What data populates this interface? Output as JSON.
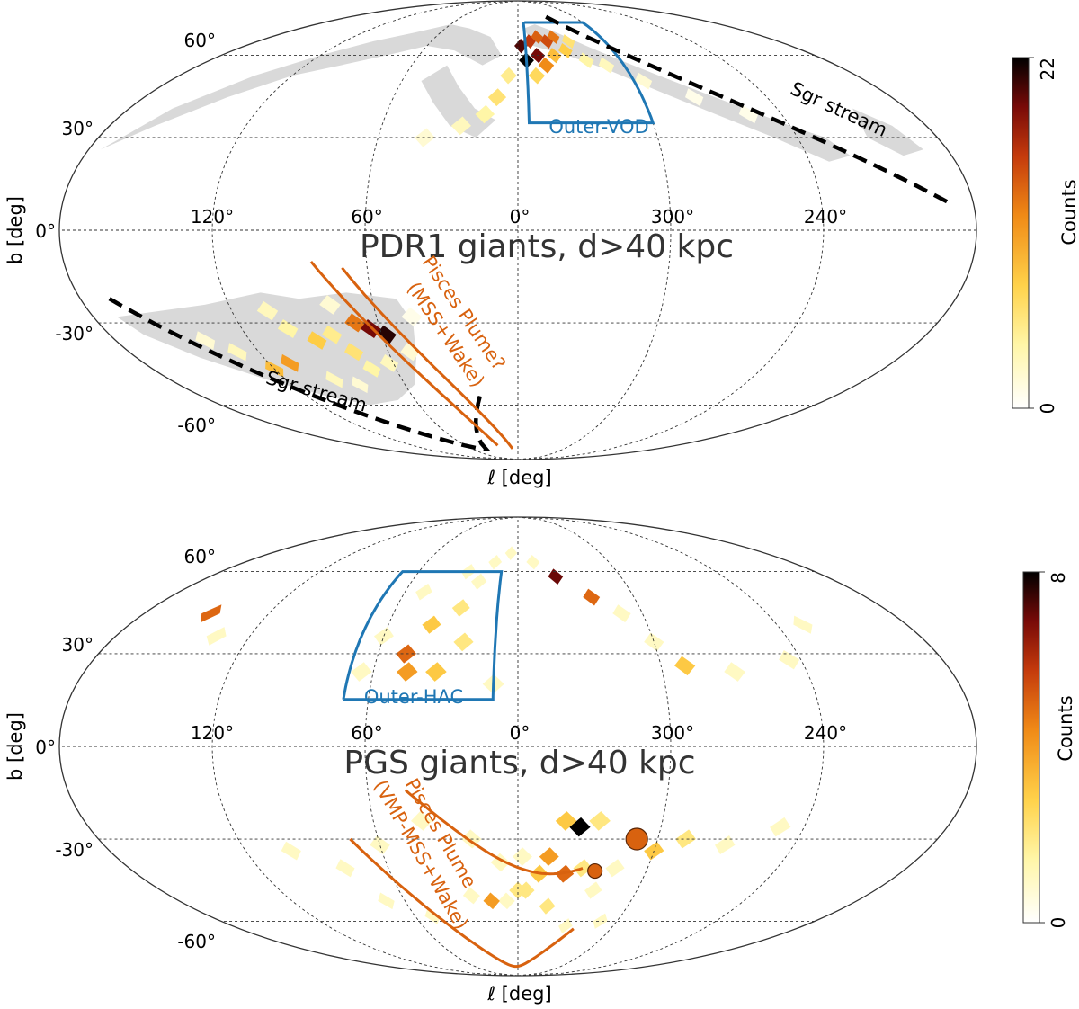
{
  "chart_data": [
    {
      "type": "heatmap",
      "projection": "mollweide",
      "title": "PDR1 giants, d>40 kpc",
      "xlabel": "ℓ [deg]",
      "ylabel": "b [deg]",
      "lon_tick_labels": [
        "120°",
        "60°",
        "0°",
        "300°",
        "240°"
      ],
      "lat_tick_labels": [
        "60°",
        "30°",
        "0°",
        "-30°",
        "-60°"
      ],
      "colorbar": {
        "label": "Counts",
        "min": 0,
        "max": 22,
        "min_label": "0",
        "max_label": "22"
      },
      "annotations": {
        "region_label": "Outer-VOD",
        "stream_label": "Sgr stream",
        "plume_line1": "Pisces Plume?",
        "plume_line2": "(MSS+Wake)"
      },
      "colors": {
        "region": "#1f77b4",
        "plume": "#d8620f",
        "stream": "#000000"
      },
      "cells": [
        {
          "l": 358,
          "b": 64,
          "v": 20
        },
        {
          "l": 352,
          "b": 66,
          "v": 16
        },
        {
          "l": 346,
          "b": 68,
          "v": 14
        },
        {
          "l": 340,
          "b": 66,
          "v": 15
        },
        {
          "l": 334,
          "b": 68,
          "v": 13
        },
        {
          "l": 355,
          "b": 58,
          "v": 22
        },
        {
          "l": 348,
          "b": 60,
          "v": 19
        },
        {
          "l": 344,
          "b": 56,
          "v": 12
        },
        {
          "l": 338,
          "b": 60,
          "v": 9
        },
        {
          "l": 330,
          "b": 62,
          "v": 8
        },
        {
          "l": 325,
          "b": 66,
          "v": 6
        },
        {
          "l": 320,
          "b": 58,
          "v": 4
        },
        {
          "l": 350,
          "b": 52,
          "v": 7
        },
        {
          "l": 5,
          "b": 52,
          "v": 5
        },
        {
          "l": 10,
          "b": 44,
          "v": 6
        },
        {
          "l": 15,
          "b": 38,
          "v": 4
        },
        {
          "l": 25,
          "b": 34,
          "v": 3
        },
        {
          "l": 40,
          "b": 30,
          "v": 2
        },
        {
          "l": 310,
          "b": 56,
          "v": 3
        },
        {
          "l": 295,
          "b": 50,
          "v": 2
        },
        {
          "l": 275,
          "b": 44,
          "v": 1
        },
        {
          "l": 255,
          "b": 38,
          "v": 1
        },
        {
          "l": 82,
          "b": -34,
          "v": 5
        },
        {
          "l": 70,
          "b": -30,
          "v": 13
        },
        {
          "l": 64,
          "b": -32,
          "v": 19
        },
        {
          "l": 58,
          "b": -34,
          "v": 21
        },
        {
          "l": 76,
          "b": -40,
          "v": 6
        },
        {
          "l": 90,
          "b": -36,
          "v": 8
        },
        {
          "l": 100,
          "b": -32,
          "v": 4
        },
        {
          "l": 72,
          "b": -46,
          "v": 4
        },
        {
          "l": 62,
          "b": -44,
          "v": 3
        },
        {
          "l": 110,
          "b": -44,
          "v": 11
        },
        {
          "l": 120,
          "b": -46,
          "v": 9
        },
        {
          "l": 95,
          "b": -50,
          "v": 3
        },
        {
          "l": 84,
          "b": -52,
          "v": 2
        },
        {
          "l": 130,
          "b": -40,
          "v": 3
        },
        {
          "l": 140,
          "b": -36,
          "v": 2
        },
        {
          "l": 105,
          "b": -26,
          "v": 3
        },
        {
          "l": 50,
          "b": -40,
          "v": 2
        },
        {
          "l": 78,
          "b": -24,
          "v": 2
        },
        {
          "l": 45,
          "b": -28,
          "v": 1
        }
      ]
    },
    {
      "type": "heatmap",
      "projection": "mollweide",
      "title": "PGS giants, d>40 kpc",
      "xlabel": "ℓ [deg]",
      "ylabel": "b [deg]",
      "lon_tick_labels": [
        "120°",
        "60°",
        "0°",
        "300°",
        "240°"
      ],
      "lat_tick_labels": [
        "60°",
        "30°",
        "0°",
        "-30°",
        "-60°"
      ],
      "colorbar": {
        "label": "Counts",
        "min": 0,
        "max": 8,
        "min_label": "0",
        "max_label": "8"
      },
      "annotations": {
        "region_label": "Outer-HAC",
        "plume_line1": "Pisces Plume",
        "plume_line2": "(VMP-MSS+Wake)"
      },
      "colors": {
        "region": "#1f77b4",
        "plume": "#d8620f"
      },
      "cells": [
        {
          "l": 338,
          "b": 58,
          "v": 7
        },
        {
          "l": 322,
          "b": 50,
          "v": 5
        },
        {
          "l": 350,
          "b": 64,
          "v": 1
        },
        {
          "l": 310,
          "b": 44,
          "v": 1
        },
        {
          "l": 300,
          "b": 34,
          "v": 1
        },
        {
          "l": 290,
          "b": 26,
          "v": 3
        },
        {
          "l": 270,
          "b": 24,
          "v": 1
        },
        {
          "l": 245,
          "b": 28,
          "v": 1
        },
        {
          "l": 228,
          "b": 40,
          "v": 1
        },
        {
          "l": 148,
          "b": 44,
          "v": 5
        },
        {
          "l": 135,
          "b": 36,
          "v": 1
        },
        {
          "l": 48,
          "b": 30,
          "v": 5
        },
        {
          "l": 46,
          "b": 24,
          "v": 4
        },
        {
          "l": 34,
          "b": 24,
          "v": 3
        },
        {
          "l": 40,
          "b": 40,
          "v": 3
        },
        {
          "l": 28,
          "b": 46,
          "v": 2
        },
        {
          "l": 24,
          "b": 34,
          "v": 2
        },
        {
          "l": 60,
          "b": 36,
          "v": 1
        },
        {
          "l": 50,
          "b": 52,
          "v": 1
        },
        {
          "l": 22,
          "b": 56,
          "v": 1
        },
        {
          "l": 15,
          "b": 64,
          "v": 1
        },
        {
          "l": 30,
          "b": 60,
          "v": 1
        },
        {
          "l": 65,
          "b": 24,
          "v": 1
        },
        {
          "l": 5,
          "b": 68,
          "v": 1
        },
        {
          "l": 10,
          "b": 20,
          "v": 1
        },
        {
          "l": 334,
          "b": -26,
          "v": 8
        },
        {
          "l": 340,
          "b": -24,
          "v": 3
        },
        {
          "l": 326,
          "b": -24,
          "v": 2
        },
        {
          "l": 346,
          "b": -36,
          "v": 4
        },
        {
          "l": 350,
          "b": -42,
          "v": 3
        },
        {
          "l": 338,
          "b": -42,
          "v": 5
        },
        {
          "l": 330,
          "b": -40,
          "v": 2
        },
        {
          "l": 356,
          "b": -48,
          "v": 2
        },
        {
          "l": 344,
          "b": -54,
          "v": 2
        },
        {
          "l": 0,
          "b": -48,
          "v": 2
        },
        {
          "l": 6,
          "b": -52,
          "v": 1
        },
        {
          "l": 14,
          "b": -52,
          "v": 4
        },
        {
          "l": 24,
          "b": -50,
          "v": 1
        },
        {
          "l": 358,
          "b": -36,
          "v": 1
        },
        {
          "l": 8,
          "b": -38,
          "v": 1
        },
        {
          "l": 322,
          "b": -48,
          "v": 1
        },
        {
          "l": 330,
          "b": -62,
          "v": 1
        },
        {
          "l": 300,
          "b": -34,
          "v": 3
        },
        {
          "l": 288,
          "b": -30,
          "v": 2
        },
        {
          "l": 270,
          "b": -32,
          "v": 1
        },
        {
          "l": 250,
          "b": -26,
          "v": 1
        },
        {
          "l": 315,
          "b": -40,
          "v": 1
        },
        {
          "l": 60,
          "b": -32,
          "v": 1
        },
        {
          "l": 80,
          "b": -40,
          "v": 1
        },
        {
          "l": 100,
          "b": -34,
          "v": 1
        },
        {
          "l": 50,
          "b": -58,
          "v": 1
        },
        {
          "l": 70,
          "b": -52,
          "v": 1
        },
        {
          "l": 40,
          "b": -24,
          "v": 1
        },
        {
          "l": 20,
          "b": -30,
          "v": 1
        },
        {
          "l": 310,
          "b": -60,
          "v": 1
        }
      ],
      "markers": [
        {
          "l": 309,
          "b": -30,
          "size": "large"
        },
        {
          "l": 324,
          "b": -41,
          "size": "small"
        }
      ]
    }
  ]
}
